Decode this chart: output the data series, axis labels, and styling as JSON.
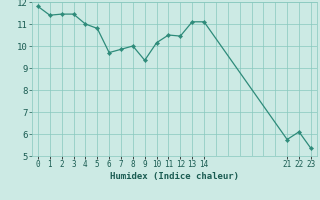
{
  "xlabel": "Humidex (Indice chaleur)",
  "x_values": [
    0,
    1,
    2,
    3,
    4,
    5,
    6,
    7,
    8,
    9,
    10,
    11,
    12,
    13,
    14,
    21,
    22,
    23
  ],
  "y_values": [
    11.8,
    11.4,
    11.45,
    11.45,
    11.0,
    10.8,
    9.7,
    9.85,
    10.0,
    9.35,
    10.15,
    10.5,
    10.45,
    11.1,
    11.1,
    5.75,
    6.1,
    5.35
  ],
  "line_color": "#2e8b7a",
  "marker_color": "#2e8b7a",
  "bg_color": "#cceae4",
  "grid_color": "#88c8be",
  "tick_color": "#1a5c52",
  "ylim": [
    5,
    12
  ],
  "xlim": [
    -0.5,
    23.5
  ],
  "yticks": [
    5,
    6,
    7,
    8,
    9,
    10,
    11,
    12
  ],
  "xtick_positions": [
    0,
    1,
    2,
    3,
    4,
    5,
    6,
    7,
    8,
    9,
    10,
    11,
    12,
    13,
    14,
    21,
    22,
    23
  ],
  "xtick_labels": [
    "0",
    "1",
    "2",
    "3",
    "4",
    "5",
    "6",
    "7",
    "8",
    "9",
    "10",
    "11",
    "12",
    "13",
    "14",
    "21",
    "22",
    "23"
  ]
}
